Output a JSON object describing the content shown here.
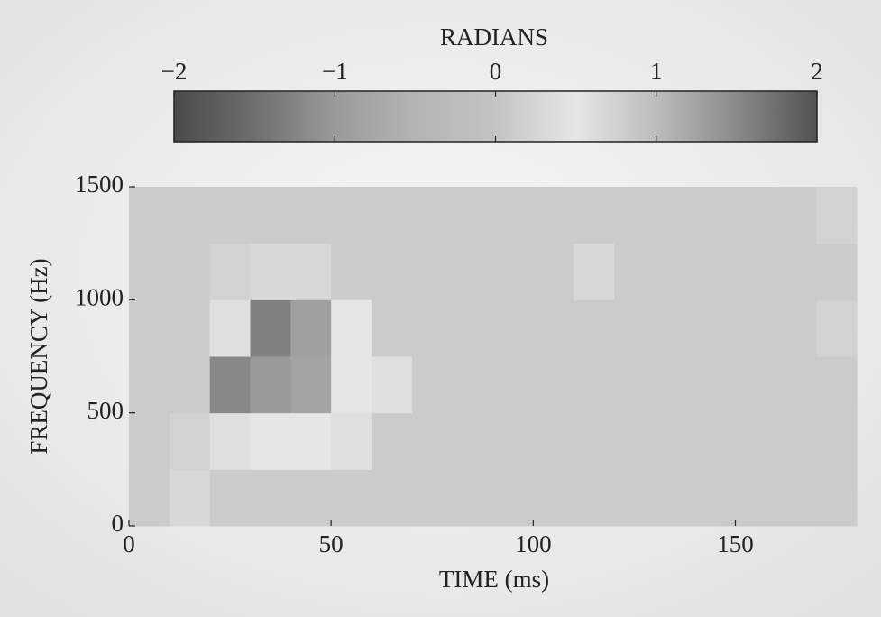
{
  "chart_data": {
    "type": "heatmap",
    "xlabel": "TIME (ms)",
    "ylabel": "FREQUENCY (Hz)",
    "xlim": [
      0,
      180
    ],
    "xticks": [
      0,
      50,
      100,
      150
    ],
    "ylim": [
      0,
      1500
    ],
    "yticks": [
      0,
      500,
      1000,
      1500
    ],
    "xbins": [
      0,
      10,
      20,
      30,
      40,
      50,
      60,
      70,
      80,
      90,
      100,
      110,
      120,
      130,
      140,
      150,
      160,
      170,
      180
    ],
    "ybins": [
      0,
      250,
      500,
      750,
      1000,
      1250,
      1500
    ],
    "z": [
      [
        0.1,
        0.3,
        0.1,
        0.1,
        0.1,
        0.1,
        0.1,
        0.1,
        0.1,
        0.1,
        0.1,
        0.1,
        0.1,
        0.1,
        0.1,
        0.1,
        0.1,
        0.1
      ],
      [
        0.1,
        0.2,
        0.4,
        0.5,
        0.5,
        0.4,
        0.1,
        0.1,
        0.1,
        0.1,
        0.1,
        0.1,
        0.1,
        0.1,
        0.1,
        0.1,
        0.1,
        0.1
      ],
      [
        0.1,
        0.1,
        -1.2,
        -1.0,
        -0.8,
        0.5,
        0.4,
        0.1,
        0.1,
        0.1,
        0.1,
        0.1,
        0.1,
        0.1,
        0.1,
        0.1,
        0.1,
        0.1
      ],
      [
        0.1,
        0.1,
        0.4,
        -1.3,
        -0.9,
        0.5,
        0.1,
        0.1,
        0.1,
        0.1,
        0.1,
        0.1,
        0.1,
        0.1,
        0.1,
        0.1,
        0.1,
        0.2
      ],
      [
        0.1,
        0.1,
        0.2,
        0.3,
        0.3,
        0.1,
        0.1,
        0.1,
        0.1,
        0.1,
        0.1,
        0.3,
        0.1,
        0.1,
        0.1,
        0.1,
        0.1,
        0.1
      ],
      [
        0.1,
        0.1,
        0.1,
        0.1,
        0.1,
        0.1,
        0.1,
        0.1,
        0.1,
        0.1,
        0.1,
        0.1,
        0.1,
        0.1,
        0.1,
        0.1,
        0.1,
        0.2
      ]
    ],
    "colorbar": {
      "label": "RADIANS",
      "lim": [
        -2,
        2
      ],
      "ticks": [
        {
          "value": -2,
          "label": "−2"
        },
        {
          "value": -1,
          "label": "−1"
        },
        0,
        1,
        2
      ],
      "colors": [
        "#4a4a4a",
        "#6e6e6e",
        "#9a9a9a",
        "#b4b4b4",
        "#c4c4c4",
        "#e6e6e6",
        "#bcbcbc",
        "#8a8a8a",
        "#525252"
      ]
    }
  }
}
